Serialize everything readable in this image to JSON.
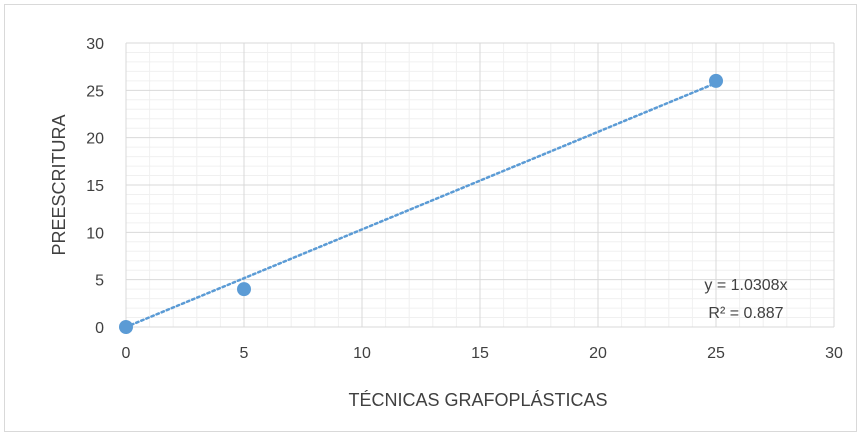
{
  "chart_data": {
    "type": "scatter",
    "title": "",
    "xlabel": "TÉCNICAS GRAFOPLÁSTICAS",
    "ylabel": "PREESCRITURA",
    "xlim": [
      0,
      30
    ],
    "ylim": [
      0,
      30
    ],
    "x_major_ticks": [
      "0",
      "5",
      "10",
      "15",
      "20",
      "25",
      "30"
    ],
    "y_major_ticks": [
      "0",
      "5",
      "10",
      "15",
      "20",
      "25",
      "30"
    ],
    "grid": true,
    "minor_grid": true,
    "legend": "none",
    "series": [
      {
        "x": [
          0,
          5,
          25
        ],
        "y": [
          0,
          4,
          26
        ],
        "color": "#5b9bd5"
      }
    ],
    "trendline": {
      "type": "linear",
      "slope": 1.0308,
      "intercept": 0,
      "style": "dotted",
      "color": "#5b9bd5",
      "equation_label": "y = 1.0308x",
      "r2_label": "R² = 0.887"
    }
  }
}
